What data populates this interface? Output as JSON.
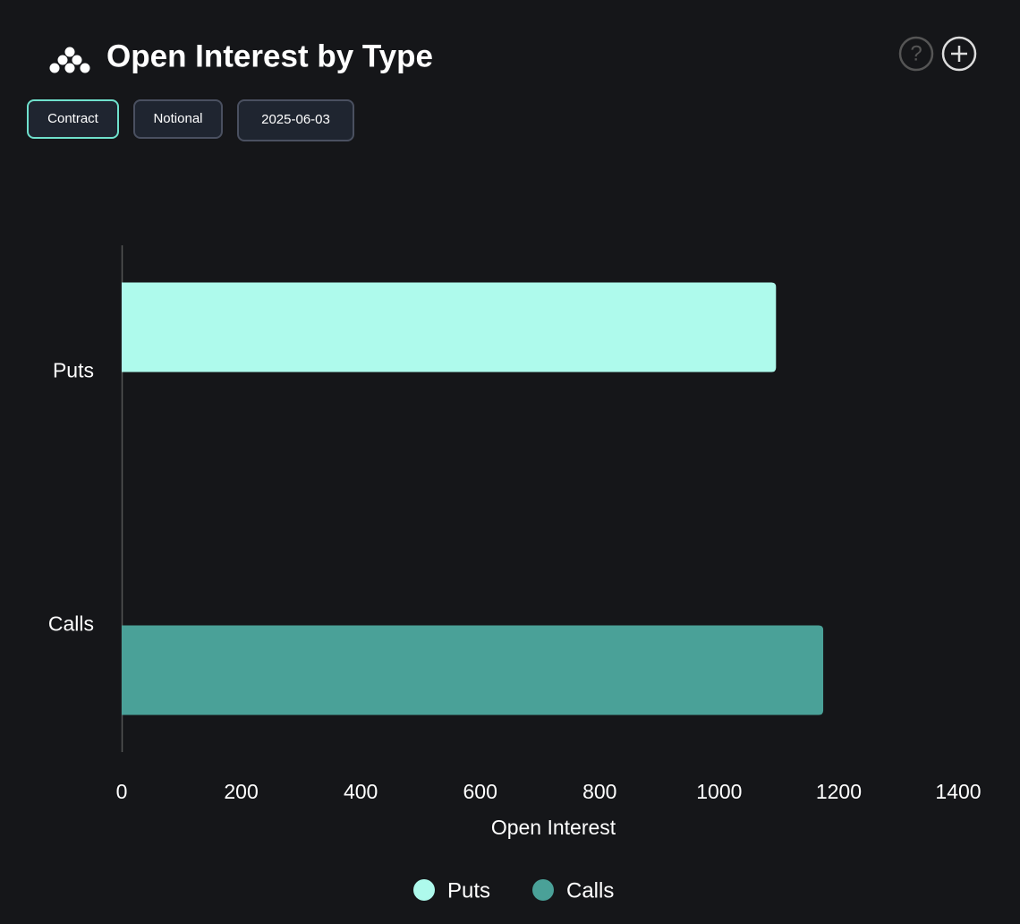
{
  "controls": {
    "buttons": [
      "Contract",
      "Notional",
      "2025-06-03"
    ]
  },
  "chart_data": {
    "type": "bar",
    "orientation": "horizontal",
    "title": "Open Interest by Type",
    "categories": [
      "Puts",
      "Calls"
    ],
    "series": [
      {
        "name": "Puts",
        "color": "#aefaec",
        "values": [
          1095,
          null
        ]
      },
      {
        "name": "Calls",
        "color": "#4aa198",
        "values": [
          null,
          1174
        ]
      }
    ],
    "xlim": [
      0,
      1400
    ],
    "xticks": [
      0,
      200,
      400,
      600,
      800,
      1000,
      1200,
      1400
    ],
    "xlabel": "Open Interest",
    "legend": "bottom"
  }
}
